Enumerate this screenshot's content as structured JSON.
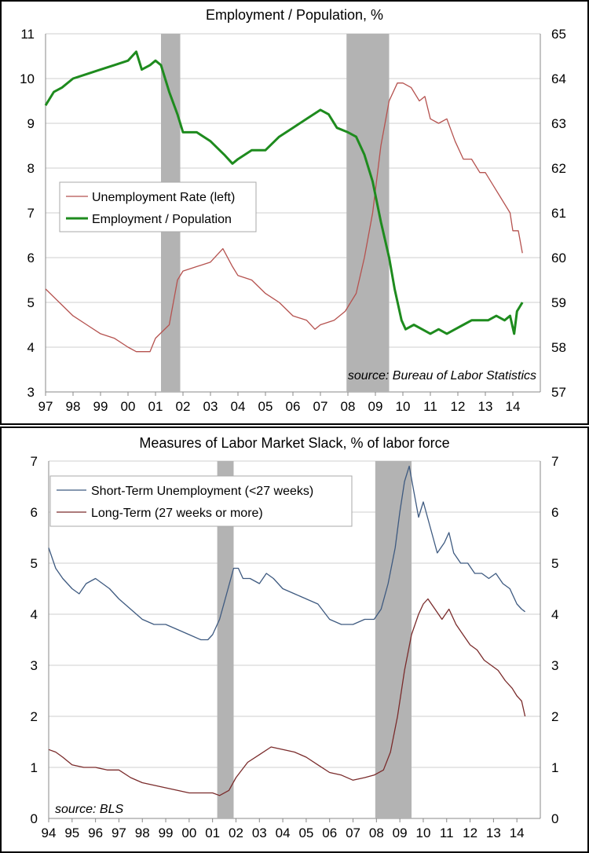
{
  "chart_data": [
    {
      "type": "line",
      "title": "Employment / Population, %",
      "source": "source: Bureau of Labor Statistics",
      "left_axis": {
        "ylim": [
          3,
          11
        ],
        "ticks": [
          "3",
          "4",
          "5",
          "6",
          "7",
          "8",
          "9",
          "10",
          "11"
        ]
      },
      "right_axis": {
        "ylim": [
          57,
          65
        ],
        "ticks": [
          "57",
          "58",
          "59",
          "60",
          "61",
          "62",
          "63",
          "64",
          "65"
        ]
      },
      "xlim": [
        1997,
        2015
      ],
      "x_ticks": [
        "97",
        "98",
        "99",
        "00",
        "01",
        "02",
        "03",
        "04",
        "05",
        "06",
        "07",
        "08",
        "09",
        "10",
        "11",
        "12",
        "13",
        "14"
      ],
      "grid": true,
      "legend_position": "middle-left",
      "recessions": [
        [
          2001.2,
          2001.9
        ],
        [
          2007.95,
          2009.5
        ]
      ],
      "series": [
        {
          "name": "Unemployment Rate (left)",
          "axis": "left",
          "color": "#b5524f",
          "points": [
            [
              1997.0,
              5.3
            ],
            [
              1997.5,
              5.0
            ],
            [
              1998.0,
              4.7
            ],
            [
              1998.5,
              4.5
            ],
            [
              1999.0,
              4.3
            ],
            [
              1999.5,
              4.2
            ],
            [
              2000.0,
              4.0
            ],
            [
              2000.3,
              3.9
            ],
            [
              2000.8,
              3.9
            ],
            [
              2001.0,
              4.2
            ],
            [
              2001.5,
              4.5
            ],
            [
              2001.8,
              5.5
            ],
            [
              2002.0,
              5.7
            ],
            [
              2002.5,
              5.8
            ],
            [
              2003.0,
              5.9
            ],
            [
              2003.45,
              6.2
            ],
            [
              2003.8,
              5.8
            ],
            [
              2004.0,
              5.6
            ],
            [
              2004.5,
              5.5
            ],
            [
              2005.0,
              5.2
            ],
            [
              2005.5,
              5.0
            ],
            [
              2006.0,
              4.7
            ],
            [
              2006.5,
              4.6
            ],
            [
              2006.8,
              4.4
            ],
            [
              2007.0,
              4.5
            ],
            [
              2007.5,
              4.6
            ],
            [
              2007.9,
              4.8
            ],
            [
              2008.3,
              5.2
            ],
            [
              2008.6,
              6.0
            ],
            [
              2008.9,
              7.0
            ],
            [
              2009.2,
              8.5
            ],
            [
              2009.5,
              9.5
            ],
            [
              2009.8,
              9.9
            ],
            [
              2010.0,
              9.9
            ],
            [
              2010.3,
              9.8
            ],
            [
              2010.6,
              9.5
            ],
            [
              2010.8,
              9.6
            ],
            [
              2011.0,
              9.1
            ],
            [
              2011.3,
              9.0
            ],
            [
              2011.6,
              9.1
            ],
            [
              2011.9,
              8.6
            ],
            [
              2012.2,
              8.2
            ],
            [
              2012.5,
              8.2
            ],
            [
              2012.8,
              7.9
            ],
            [
              2013.0,
              7.9
            ],
            [
              2013.3,
              7.6
            ],
            [
              2013.6,
              7.3
            ],
            [
              2013.9,
              7.0
            ],
            [
              2014.0,
              6.6
            ],
            [
              2014.2,
              6.6
            ],
            [
              2014.35,
              6.1
            ]
          ]
        },
        {
          "name": "Employment / Population",
          "axis": "right",
          "color": "#1e8b1e",
          "points": [
            [
              1997.0,
              63.4
            ],
            [
              1997.3,
              63.7
            ],
            [
              1997.6,
              63.8
            ],
            [
              1998.0,
              64.0
            ],
            [
              1998.5,
              64.1
            ],
            [
              1999.0,
              64.2
            ],
            [
              1999.5,
              64.3
            ],
            [
              2000.0,
              64.4
            ],
            [
              2000.3,
              64.6
            ],
            [
              2000.5,
              64.2
            ],
            [
              2000.8,
              64.3
            ],
            [
              2001.0,
              64.4
            ],
            [
              2001.2,
              64.3
            ],
            [
              2001.5,
              63.7
            ],
            [
              2001.8,
              63.2
            ],
            [
              2002.0,
              62.8
            ],
            [
              2002.5,
              62.8
            ],
            [
              2003.0,
              62.6
            ],
            [
              2003.5,
              62.3
            ],
            [
              2003.8,
              62.1
            ],
            [
              2004.0,
              62.2
            ],
            [
              2004.5,
              62.4
            ],
            [
              2005.0,
              62.4
            ],
            [
              2005.5,
              62.7
            ],
            [
              2006.0,
              62.9
            ],
            [
              2006.5,
              63.1
            ],
            [
              2007.0,
              63.3
            ],
            [
              2007.3,
              63.2
            ],
            [
              2007.6,
              62.9
            ],
            [
              2008.0,
              62.8
            ],
            [
              2008.3,
              62.7
            ],
            [
              2008.6,
              62.3
            ],
            [
              2008.9,
              61.7
            ],
            [
              2009.2,
              60.8
            ],
            [
              2009.5,
              60.0
            ],
            [
              2009.7,
              59.3
            ],
            [
              2009.95,
              58.6
            ],
            [
              2010.1,
              58.4
            ],
            [
              2010.4,
              58.5
            ],
            [
              2010.7,
              58.4
            ],
            [
              2011.0,
              58.3
            ],
            [
              2011.3,
              58.4
            ],
            [
              2011.6,
              58.3
            ],
            [
              2011.9,
              58.4
            ],
            [
              2012.2,
              58.5
            ],
            [
              2012.5,
              58.6
            ],
            [
              2012.8,
              58.6
            ],
            [
              2013.1,
              58.6
            ],
            [
              2013.4,
              58.7
            ],
            [
              2013.7,
              58.6
            ],
            [
              2013.9,
              58.7
            ],
            [
              2014.05,
              58.3
            ],
            [
              2014.15,
              58.8
            ],
            [
              2014.35,
              59.0
            ]
          ]
        }
      ]
    },
    {
      "type": "line",
      "title": "Measures of Labor Market Slack, % of labor force",
      "source": "source: BLS",
      "left_axis": {
        "ylim": [
          0,
          7
        ],
        "ticks": [
          "0",
          "1",
          "2",
          "3",
          "4",
          "5",
          "6",
          "7"
        ]
      },
      "right_axis": {
        "ylim": [
          0,
          7
        ],
        "ticks": [
          "0",
          "1",
          "2",
          "3",
          "4",
          "5",
          "6",
          "7"
        ]
      },
      "xlim": [
        1994,
        2015
      ],
      "x_ticks": [
        "94",
        "95",
        "96",
        "97",
        "98",
        "99",
        "00",
        "01",
        "02",
        "03",
        "04",
        "05",
        "06",
        "07",
        "08",
        "09",
        "10",
        "11",
        "12",
        "13",
        "14"
      ],
      "grid": true,
      "legend_position": "top-left",
      "recessions": [
        [
          2001.2,
          2001.9
        ],
        [
          2007.95,
          2009.5
        ]
      ],
      "series": [
        {
          "name": "Short-Term Unemployment (<27 weeks)",
          "color": "#3e5a80",
          "points": [
            [
              1994.0,
              5.3
            ],
            [
              1994.3,
              4.9
            ],
            [
              1994.6,
              4.7
            ],
            [
              1995.0,
              4.5
            ],
            [
              1995.3,
              4.4
            ],
            [
              1995.6,
              4.6
            ],
            [
              1996.0,
              4.7
            ],
            [
              1996.3,
              4.6
            ],
            [
              1996.6,
              4.5
            ],
            [
              1997.0,
              4.3
            ],
            [
              1997.5,
              4.1
            ],
            [
              1998.0,
              3.9
            ],
            [
              1998.5,
              3.8
            ],
            [
              1999.0,
              3.8
            ],
            [
              1999.5,
              3.7
            ],
            [
              2000.0,
              3.6
            ],
            [
              2000.5,
              3.5
            ],
            [
              2000.8,
              3.5
            ],
            [
              2001.0,
              3.6
            ],
            [
              2001.3,
              3.9
            ],
            [
              2001.6,
              4.4
            ],
            [
              2001.9,
              4.9
            ],
            [
              2002.1,
              4.9
            ],
            [
              2002.3,
              4.7
            ],
            [
              2002.6,
              4.7
            ],
            [
              2003.0,
              4.6
            ],
            [
              2003.3,
              4.8
            ],
            [
              2003.6,
              4.7
            ],
            [
              2004.0,
              4.5
            ],
            [
              2004.5,
              4.4
            ],
            [
              2005.0,
              4.3
            ],
            [
              2005.5,
              4.2
            ],
            [
              2006.0,
              3.9
            ],
            [
              2006.5,
              3.8
            ],
            [
              2007.0,
              3.8
            ],
            [
              2007.5,
              3.9
            ],
            [
              2007.9,
              3.9
            ],
            [
              2008.2,
              4.1
            ],
            [
              2008.5,
              4.6
            ],
            [
              2008.8,
              5.3
            ],
            [
              2009.0,
              6.0
            ],
            [
              2009.2,
              6.6
            ],
            [
              2009.4,
              6.9
            ],
            [
              2009.6,
              6.4
            ],
            [
              2009.8,
              5.9
            ],
            [
              2010.0,
              6.2
            ],
            [
              2010.3,
              5.7
            ],
            [
              2010.6,
              5.2
            ],
            [
              2010.9,
              5.4
            ],
            [
              2011.1,
              5.6
            ],
            [
              2011.3,
              5.2
            ],
            [
              2011.6,
              5.0
            ],
            [
              2011.9,
              5.0
            ],
            [
              2012.2,
              4.8
            ],
            [
              2012.5,
              4.8
            ],
            [
              2012.8,
              4.7
            ],
            [
              2013.1,
              4.8
            ],
            [
              2013.4,
              4.6
            ],
            [
              2013.7,
              4.5
            ],
            [
              2014.0,
              4.2
            ],
            [
              2014.2,
              4.1
            ],
            [
              2014.35,
              4.05
            ]
          ]
        },
        {
          "name": "Long-Term (27 weeks or more)",
          "color": "#7a2b2b",
          "points": [
            [
              1994.0,
              1.35
            ],
            [
              1994.3,
              1.3
            ],
            [
              1994.6,
              1.2
            ],
            [
              1995.0,
              1.05
            ],
            [
              1995.5,
              1.0
            ],
            [
              1996.0,
              1.0
            ],
            [
              1996.5,
              0.95
            ],
            [
              1997.0,
              0.95
            ],
            [
              1997.5,
              0.8
            ],
            [
              1998.0,
              0.7
            ],
            [
              1998.5,
              0.65
            ],
            [
              1999.0,
              0.6
            ],
            [
              1999.5,
              0.55
            ],
            [
              2000.0,
              0.5
            ],
            [
              2000.5,
              0.5
            ],
            [
              2001.0,
              0.5
            ],
            [
              2001.3,
              0.45
            ],
            [
              2001.7,
              0.55
            ],
            [
              2002.0,
              0.8
            ],
            [
              2002.5,
              1.1
            ],
            [
              2003.0,
              1.25
            ],
            [
              2003.5,
              1.4
            ],
            [
              2004.0,
              1.35
            ],
            [
              2004.5,
              1.3
            ],
            [
              2005.0,
              1.2
            ],
            [
              2005.5,
              1.05
            ],
            [
              2006.0,
              0.9
            ],
            [
              2006.5,
              0.85
            ],
            [
              2007.0,
              0.75
            ],
            [
              2007.5,
              0.8
            ],
            [
              2007.9,
              0.85
            ],
            [
              2008.3,
              0.95
            ],
            [
              2008.6,
              1.3
            ],
            [
              2008.9,
              2.0
            ],
            [
              2009.2,
              2.9
            ],
            [
              2009.5,
              3.6
            ],
            [
              2009.8,
              4.0
            ],
            [
              2010.0,
              4.2
            ],
            [
              2010.2,
              4.3
            ],
            [
              2010.5,
              4.1
            ],
            [
              2010.8,
              3.9
            ],
            [
              2011.1,
              4.1
            ],
            [
              2011.4,
              3.8
            ],
            [
              2011.7,
              3.6
            ],
            [
              2012.0,
              3.4
            ],
            [
              2012.3,
              3.3
            ],
            [
              2012.6,
              3.1
            ],
            [
              2012.9,
              3.0
            ],
            [
              2013.2,
              2.9
            ],
            [
              2013.5,
              2.7
            ],
            [
              2013.8,
              2.55
            ],
            [
              2014.0,
              2.4
            ],
            [
              2014.2,
              2.3
            ],
            [
              2014.35,
              2.0
            ]
          ]
        }
      ]
    }
  ]
}
